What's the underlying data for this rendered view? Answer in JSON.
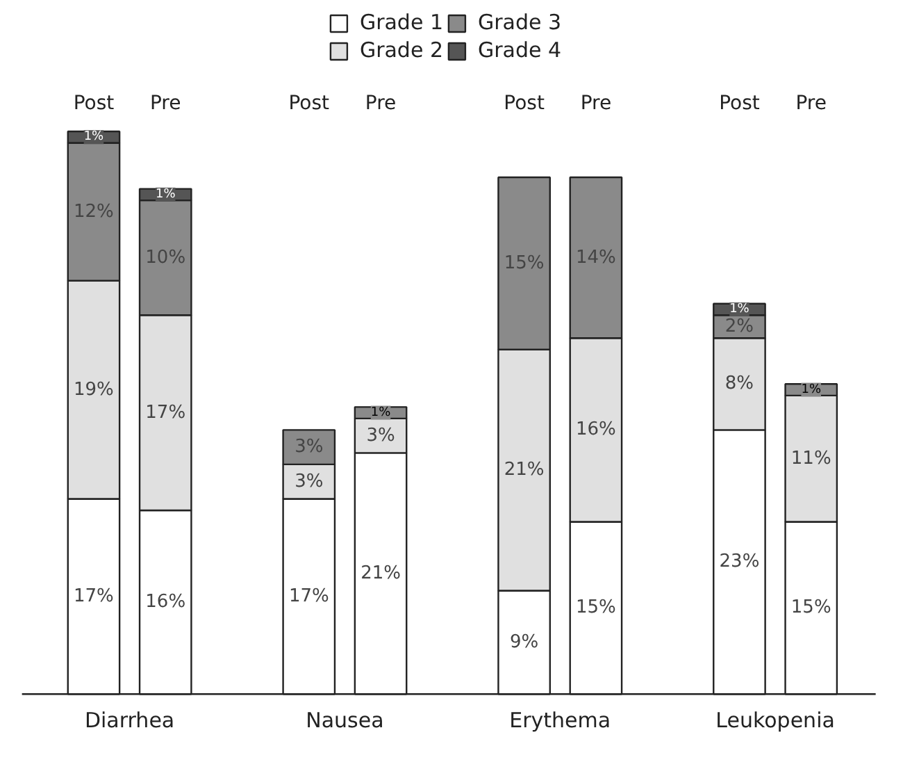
{
  "chart_data": {
    "type": "bar",
    "stacked": true,
    "legend": "top",
    "categories": [
      "Post",
      "Pre",
      "Post",
      "Pre",
      "Post",
      "Pre",
      "Post",
      "Pre"
    ],
    "annotations": [
      "Diarrhea",
      "Nausea",
      "Erythema",
      "Leukopenia"
    ],
    "series": [
      {
        "name": "Grade 1",
        "color": "#ffffff",
        "values": [
          17,
          16,
          17,
          21,
          9,
          15,
          23,
          15
        ],
        "value_labels": [
          "17%",
          "16%",
          "17%",
          "21%",
          "9%",
          "15%",
          "23%",
          "15%"
        ]
      },
      {
        "name": "Grade 2",
        "color": "#e0e0e0",
        "values": [
          19,
          17,
          3,
          3,
          21,
          16,
          8,
          11
        ],
        "value_labels": [
          "19%",
          "17%",
          "3%",
          "3%",
          "21%",
          "16%",
          "8%",
          "11%"
        ]
      },
      {
        "name": "Grade 3",
        "color": "#8a8a8a",
        "values": [
          12,
          10,
          3,
          1,
          15,
          14,
          2,
          1
        ],
        "value_labels": [
          "12%",
          "10%",
          "3%",
          "1%",
          "15%",
          "14%",
          "2%",
          "1%"
        ]
      },
      {
        "name": "Grade 4",
        "color": "#555555",
        "values": [
          1,
          1,
          null,
          null,
          null,
          null,
          1,
          null
        ],
        "value_labels": [
          "1%",
          "1%",
          null,
          null,
          null,
          null,
          "1%",
          null
        ]
      }
    ]
  }
}
